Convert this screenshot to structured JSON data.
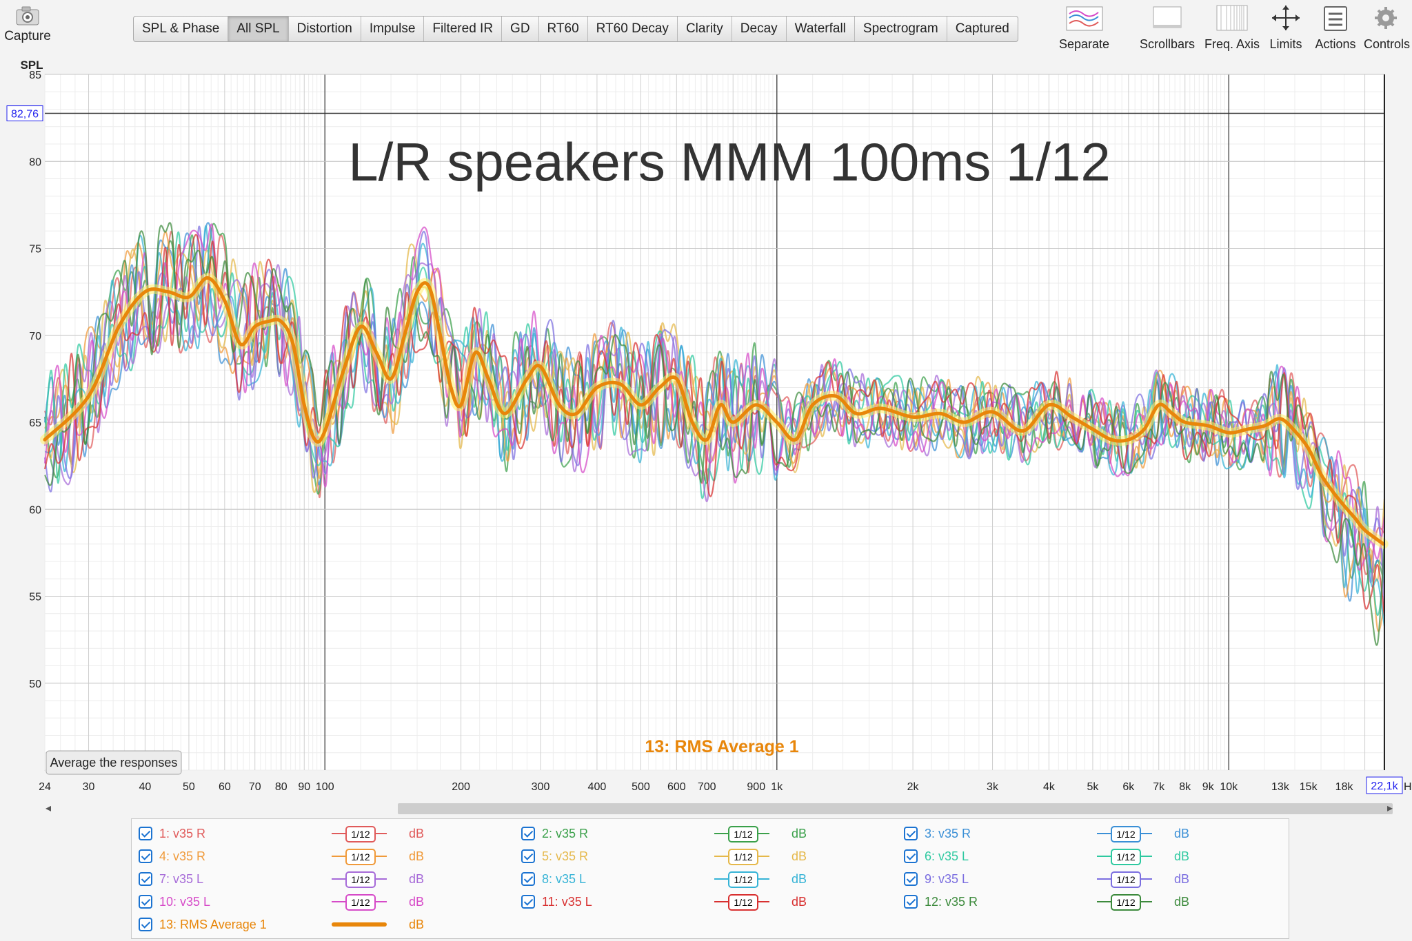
{
  "toolbar": {
    "capture_label": "Capture",
    "tabs": [
      "SPL & Phase",
      "All SPL",
      "Distortion",
      "Impulse",
      "Filtered IR",
      "GD",
      "RT60",
      "RT60 Decay",
      "Clarity",
      "Decay",
      "Waterfall",
      "Spectrogram",
      "Captured"
    ],
    "active_tab": "All SPL",
    "right_buttons": [
      "Separate",
      "Scrollbars",
      "Freq. Axis",
      "Limits",
      "Actions",
      "Controls"
    ]
  },
  "chart_data": {
    "type": "line",
    "title": "L/R speakers MMM 100ms 1/12",
    "ylabel": "SPL",
    "xunit": "Hz",
    "xscale": "log",
    "xlim": [
      24,
      22100
    ],
    "ylim": [
      45,
      85
    ],
    "yticks": [
      50,
      55,
      60,
      65,
      70,
      75,
      80,
      85
    ],
    "xticks": [
      "24",
      "30",
      "40",
      "50",
      "60",
      "70",
      "80",
      "90",
      "100",
      "200",
      "300",
      "400",
      "500",
      "600",
      "700",
      "900",
      "1k",
      "2k",
      "3k",
      "4k",
      "5k",
      "6k",
      "7k",
      "8k",
      "9k",
      "10k",
      "13k",
      "15k",
      "18k"
    ],
    "cursor_y_label": "82,76",
    "cursor_y_value": 82.76,
    "cursor_x_label": "22,1k",
    "cursor_x_value": 22100,
    "active_trace_label": "13: RMS Average 1",
    "average_button": "Average the responses",
    "grid": true,
    "series": [
      {
        "name": "1: v35 R",
        "color": "#e05a5a"
      },
      {
        "name": "2: v35 R",
        "color": "#3aa04a"
      },
      {
        "name": "3: v35 R",
        "color": "#3a8fd6"
      },
      {
        "name": "4: v35 R",
        "color": "#f09a3a"
      },
      {
        "name": "5: v35 R",
        "color": "#e5b84a"
      },
      {
        "name": "6: v35 L",
        "color": "#2ec9a0"
      },
      {
        "name": "7: v35 L",
        "color": "#a66ad8"
      },
      {
        "name": "8: v35 L",
        "color": "#35b3d6"
      },
      {
        "name": "9: v35 L",
        "color": "#7b6ee0"
      },
      {
        "name": "10: v35 L",
        "color": "#d64ac8"
      },
      {
        "name": "11: v35 L",
        "color": "#d83030"
      },
      {
        "name": "12: v35 R",
        "color": "#3c8a3c"
      },
      {
        "name": "13: RMS Average 1",
        "color": "#e8860a",
        "points": [
          [
            24,
            64
          ],
          [
            30,
            66.5
          ],
          [
            35,
            70.5
          ],
          [
            40,
            72.5
          ],
          [
            45,
            72.5
          ],
          [
            50,
            72.2
          ],
          [
            55,
            73.3
          ],
          [
            60,
            72
          ],
          [
            65,
            69.5
          ],
          [
            70,
            70.5
          ],
          [
            75,
            70.8
          ],
          [
            80,
            70.8
          ],
          [
            85,
            69.5
          ],
          [
            90,
            66
          ],
          [
            95,
            64
          ],
          [
            100,
            64.5
          ],
          [
            110,
            68
          ],
          [
            120,
            70.5
          ],
          [
            130,
            69
          ],
          [
            140,
            67.5
          ],
          [
            150,
            70
          ],
          [
            160,
            72.5
          ],
          [
            170,
            72.8
          ],
          [
            180,
            70
          ],
          [
            190,
            67
          ],
          [
            200,
            66
          ],
          [
            215,
            69
          ],
          [
            230,
            67.5
          ],
          [
            250,
            65.5
          ],
          [
            280,
            67.5
          ],
          [
            300,
            68.2
          ],
          [
            330,
            66
          ],
          [
            360,
            65.5
          ],
          [
            400,
            67
          ],
          [
            450,
            67.2
          ],
          [
            500,
            66
          ],
          [
            550,
            67
          ],
          [
            600,
            67.5
          ],
          [
            650,
            65
          ],
          [
            700,
            64
          ],
          [
            750,
            66
          ],
          [
            800,
            65
          ],
          [
            900,
            66
          ],
          [
            1000,
            65
          ],
          [
            1100,
            64
          ],
          [
            1200,
            66
          ],
          [
            1350,
            66.5
          ],
          [
            1500,
            65.5
          ],
          [
            1700,
            65.8
          ],
          [
            2000,
            65.3
          ],
          [
            2300,
            65.5
          ],
          [
            2600,
            65
          ],
          [
            3000,
            65.6
          ],
          [
            3500,
            64.5
          ],
          [
            4000,
            66
          ],
          [
            4500,
            65.3
          ],
          [
            5000,
            64.6
          ],
          [
            5500,
            64
          ],
          [
            6000,
            64
          ],
          [
            6500,
            64.6
          ],
          [
            7000,
            66
          ],
          [
            7500,
            65.5
          ],
          [
            8000,
            65
          ],
          [
            9000,
            64.8
          ],
          [
            10000,
            64.4
          ],
          [
            11000,
            64.6
          ],
          [
            12000,
            64.8
          ],
          [
            13000,
            65.2
          ],
          [
            14000,
            64.5
          ],
          [
            15000,
            63.5
          ],
          [
            16000,
            62
          ],
          [
            17000,
            61
          ],
          [
            18000,
            60.2
          ],
          [
            19000,
            59.5
          ],
          [
            20000,
            58.8
          ],
          [
            22000,
            58
          ]
        ]
      }
    ]
  },
  "legend": {
    "smoothing_label": "1/12",
    "unit": "dB"
  },
  "colors": {
    "average": "#e8860a",
    "checkbox": "#1b73d1"
  }
}
